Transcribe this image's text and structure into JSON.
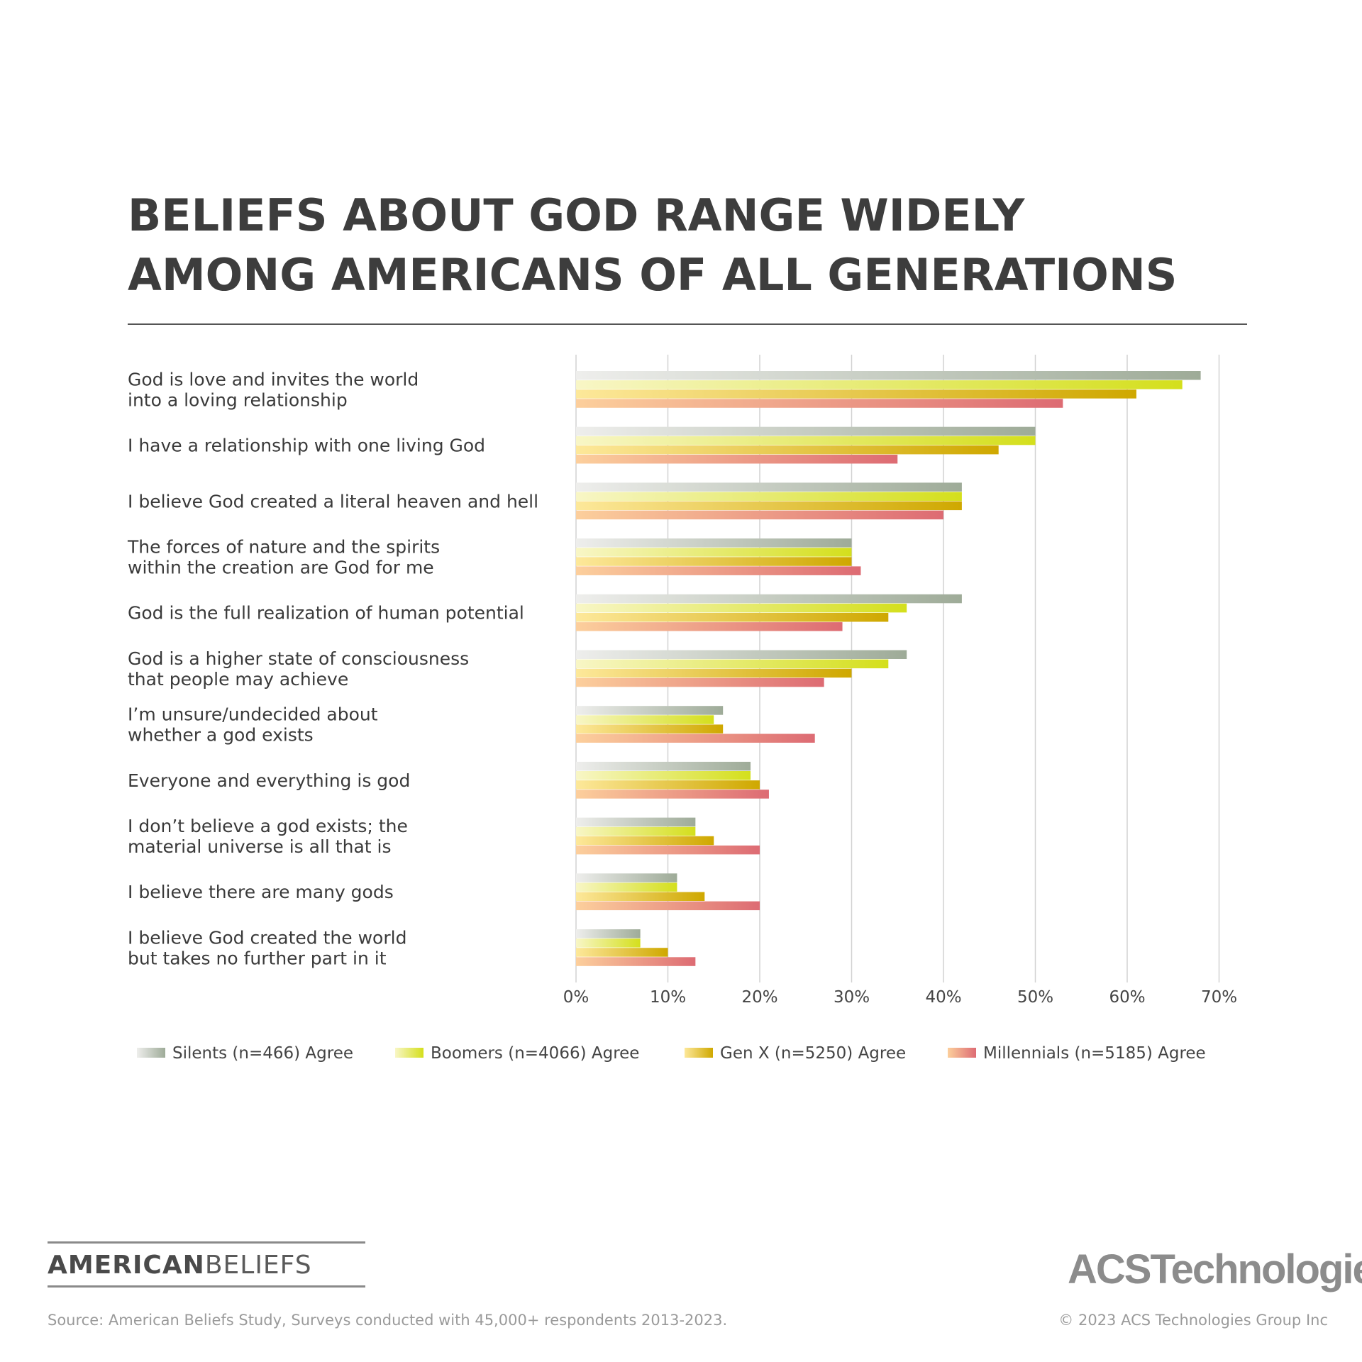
{
  "chart_data": {
    "type": "bar",
    "orientation": "horizontal",
    "title": "BELIEFS ABOUT GOD RANGE WIDELY AMONG AMERICANS OF ALL GENERATIONS",
    "title_lines": [
      "BELIEFS ABOUT GOD RANGE WIDELY",
      "AMONG AMERICANS OF ALL GENERATIONS"
    ],
    "categories": [
      [
        "God is love and invites the world",
        "into a loving relationship"
      ],
      [
        "I have a relationship with one living God"
      ],
      [
        "I believe God created a literal heaven and hell"
      ],
      [
        "The forces of nature and the spirits",
        "within the creation are God for me"
      ],
      [
        "God is the full realization of human potential"
      ],
      [
        "God is a higher state of consciousness",
        "that people may achieve"
      ],
      [
        "I’m unsure/undecided about",
        "whether a god exists"
      ],
      [
        "Everyone and everything is god"
      ],
      [
        "I don’t believe a god exists; the",
        "material universe is all that is"
      ],
      [
        "I believe there are many gods"
      ],
      [
        "I believe God created the world",
        "but takes no further part in it"
      ]
    ],
    "series": [
      {
        "name": "Silents (n=466) Agree",
        "values": [
          68,
          50,
          42,
          30,
          42,
          36,
          16,
          19,
          13,
          11,
          7
        ],
        "color_start": "#eeeeec",
        "color_end": "#9eab98"
      },
      {
        "name": "Boomers (n=4066) Agree",
        "values": [
          66,
          50,
          42,
          30,
          36,
          34,
          15,
          19,
          13,
          11,
          7
        ],
        "color_start": "#f8f6c6",
        "color_end": "#d4df1c"
      },
      {
        "name": "Gen X (n=5250) Agree",
        "values": [
          61,
          46,
          42,
          30,
          34,
          30,
          16,
          20,
          15,
          14,
          10
        ],
        "color_start": "#fde89a",
        "color_end": "#cfa800"
      },
      {
        "name": "Millennials (n=5185) Agree",
        "values": [
          53,
          35,
          40,
          31,
          29,
          27,
          26,
          21,
          20,
          20,
          13
        ],
        "color_start": "#fccf9c",
        "color_end": "#dd6b73"
      }
    ],
    "xlim": [
      0,
      70
    ],
    "xticks": [
      0,
      10,
      20,
      30,
      40,
      50,
      60,
      70
    ],
    "xtick_labels": [
      "0%",
      "10%",
      "20%",
      "30%",
      "40%",
      "50%",
      "60%",
      "70%"
    ],
    "grid": true,
    "legend_position": "bottom"
  },
  "branding": {
    "logo_bold_part": "AMERICAN",
    "logo_light_part": "BELIEFS",
    "company_logo": "ACSTechnologies.",
    "source": "Source: American Beliefs Study, Surveys conducted with 45,000+ respondents 2013-2023.",
    "copyright": "© 2023 ACS Technologies Group Inc"
  }
}
